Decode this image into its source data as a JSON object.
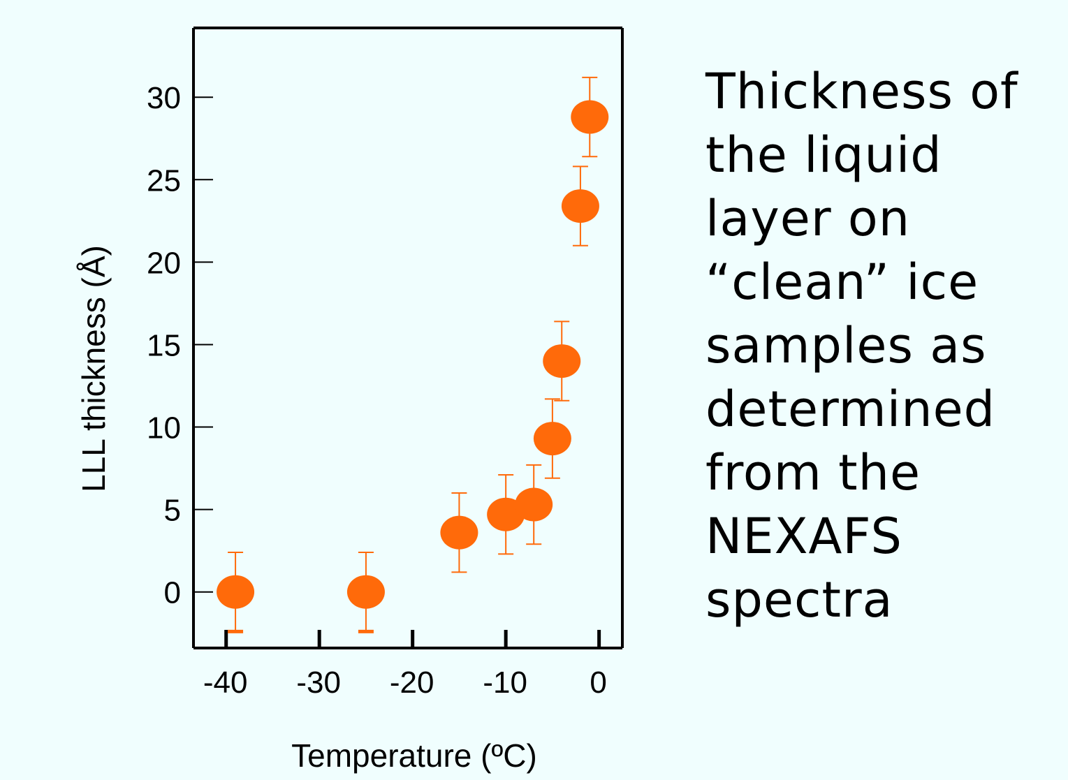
{
  "chart_data": {
    "type": "scatter",
    "xlabel": "Temperature (ºC)",
    "ylabel": "LLL thickness (Å)",
    "xlim": [
      -43.5,
      2.5
    ],
    "ylim": [
      -3.4,
      34.2
    ],
    "xticks": [
      -40,
      -30,
      -20,
      -10,
      0
    ],
    "yticks": [
      0,
      5,
      10,
      15,
      20,
      25,
      30
    ],
    "grid": false,
    "marker_color": "#ff6a0a",
    "points": [
      {
        "x": -39,
        "y": 0,
        "err_low": 2.4,
        "err_high": 2.4
      },
      {
        "x": -25,
        "y": 0,
        "err_low": 2.4,
        "err_high": 2.4
      },
      {
        "x": -15,
        "y": 3.6,
        "err_low": 2.4,
        "err_high": 2.4
      },
      {
        "x": -10,
        "y": 4.7,
        "err_low": 2.4,
        "err_high": 2.4
      },
      {
        "x": -7,
        "y": 5.3,
        "err_low": 2.4,
        "err_high": 2.4
      },
      {
        "x": -5,
        "y": 9.3,
        "err_low": 2.4,
        "err_high": 2.4
      },
      {
        "x": -4,
        "y": 14,
        "err_low": 2.4,
        "err_high": 2.4
      },
      {
        "x": -2,
        "y": 23.4,
        "err_low": 2.4,
        "err_high": 2.4
      },
      {
        "x": -1,
        "y": 28.8,
        "err_low": 2.4,
        "err_high": 2.4
      }
    ]
  },
  "caption": {
    "lines": [
      "Thickness of",
      "the liquid",
      "layer on",
      "“clean” ice",
      "samples as",
      "determined",
      "from the",
      "NEXAFS",
      "spectra"
    ]
  }
}
